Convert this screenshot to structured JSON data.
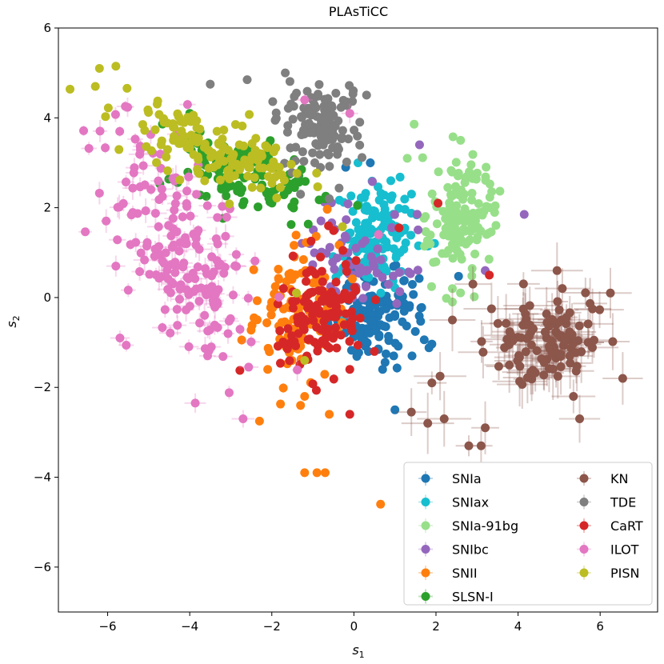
{
  "chart_data": {
    "type": "scatter",
    "title": "PLAsTiCC",
    "xlabel": "s",
    "xlabel_sub": "1",
    "ylabel": "s",
    "ylabel_sub": "2",
    "xlim": [
      -7.2,
      7.4
    ],
    "ylim": [
      -7.0,
      6.0
    ],
    "xticks": [
      -6,
      -4,
      -2,
      0,
      2,
      4,
      6
    ],
    "yticks": [
      -6,
      -4,
      -2,
      0,
      2,
      4,
      6
    ],
    "grid": false,
    "legend_placement": "lower-right",
    "series": [
      {
        "name": "SNIa",
        "color": "#1f77b4",
        "center": [
          0.6,
          -0.4
        ],
        "spread": [
          0.55,
          0.55
        ],
        "corr": 0.1,
        "count": 130,
        "err": 0.08,
        "extra": [
          [
            0.4,
            3.0
          ],
          [
            -0.2,
            2.9
          ],
          [
            1.0,
            -2.5
          ],
          [
            0.7,
            -1.6
          ]
        ]
      },
      {
        "name": "SNIax",
        "color": "#17becf",
        "center": [
          0.6,
          1.4
        ],
        "spread": [
          0.45,
          0.6
        ],
        "corr": 0.2,
        "count": 140,
        "err": 0.07,
        "extra": [
          [
            0.9,
            2.6
          ],
          [
            0.1,
            3.0
          ]
        ]
      },
      {
        "name": "SNIa-91bg",
        "color": "#98df8a",
        "center": [
          2.65,
          1.8
        ],
        "spread": [
          0.4,
          0.65
        ],
        "corr": 0.0,
        "count": 150,
        "err": 0.07,
        "extra": [
          [
            2.6,
            3.5
          ],
          [
            2.4,
            0.2
          ],
          [
            2.4,
            -0.1
          ],
          [
            1.3,
            3.1
          ]
        ]
      },
      {
        "name": "SNIbc",
        "color": "#9467bd",
        "center": [
          0.0,
          0.9
        ],
        "spread": [
          0.7,
          0.7
        ],
        "corr": 0.0,
        "count": 70,
        "err": 0.08,
        "extra": [
          [
            4.15,
            1.85
          ],
          [
            1.6,
            3.4
          ],
          [
            3.2,
            0.6
          ]
        ]
      },
      {
        "name": "SNII",
        "color": "#ff7f0e",
        "center": [
          -1.3,
          -0.3
        ],
        "spread": [
          0.5,
          0.75
        ],
        "corr": 0.1,
        "count": 120,
        "err": 0.08,
        "extra": [
          [
            -1.2,
            -3.9
          ],
          [
            -0.9,
            -3.9
          ],
          [
            -0.7,
            -3.9
          ],
          [
            0.65,
            -4.6
          ],
          [
            -1.3,
            -2.4
          ],
          [
            -0.6,
            -2.6
          ],
          [
            -2.3,
            -2.75
          ],
          [
            -2.1,
            -1.6
          ],
          [
            -1.2,
            -2.2
          ]
        ]
      },
      {
        "name": "SLSN-I",
        "color": "#2ca02c",
        "center": [
          -2.6,
          2.7
        ],
        "spread": [
          0.8,
          0.45
        ],
        "corr": -0.5,
        "count": 120,
        "err": 0.07,
        "extra": [
          [
            -4.0,
            4.1
          ],
          [
            -2.1,
            3.4
          ],
          [
            -1.7,
            2.3
          ]
        ]
      },
      {
        "name": "KN",
        "color": "#8c564b",
        "center": [
          4.8,
          -0.9
        ],
        "spread": [
          0.7,
          0.5
        ],
        "corr": 0.0,
        "count": 110,
        "err": 0.5,
        "extra": [
          [
            2.8,
            -3.3
          ],
          [
            3.1,
            -3.3
          ],
          [
            3.2,
            -2.9
          ],
          [
            2.2,
            -2.7
          ],
          [
            1.8,
            -2.8
          ],
          [
            1.4,
            -2.55
          ],
          [
            2.1,
            -1.75
          ],
          [
            1.9,
            -1.9
          ],
          [
            5.5,
            -2.7
          ],
          [
            6.55,
            -1.8
          ],
          [
            5.35,
            -2.2
          ],
          [
            6.25,
            0.1
          ],
          [
            4.95,
            0.6
          ],
          [
            5.85,
            -0.95
          ],
          [
            2.9,
            0.3
          ],
          [
            2.4,
            -0.5
          ]
        ]
      },
      {
        "name": "TDE",
        "color": "#7f7f7f",
        "center": [
          -0.8,
          3.8
        ],
        "spread": [
          0.45,
          0.5
        ],
        "corr": 0.0,
        "count": 130,
        "err": 0.08,
        "extra": [
          [
            -3.5,
            4.75
          ],
          [
            -2.6,
            4.85
          ],
          [
            -0.6,
            2.2
          ],
          [
            -1.3,
            2.3
          ]
        ]
      },
      {
        "name": "CaRT",
        "color": "#d62728",
        "center": [
          -0.8,
          -0.3
        ],
        "spread": [
          0.55,
          0.7
        ],
        "corr": 0.2,
        "count": 140,
        "err": 0.08,
        "extra": [
          [
            -0.1,
            -2.6
          ],
          [
            -0.1,
            -1.6
          ],
          [
            1.1,
            1.55
          ],
          [
            2.05,
            2.1
          ],
          [
            3.3,
            0.5
          ],
          [
            0.5,
            -1.2
          ]
        ]
      },
      {
        "name": "ILOT",
        "color": "#e377c2",
        "center": [
          -4.2,
          1.0
        ],
        "spread": [
          0.9,
          1.25
        ],
        "corr": -0.55,
        "count": 190,
        "err": 0.2,
        "extra": [
          [
            -5.8,
            0.7
          ],
          [
            -5.7,
            -0.9
          ],
          [
            -2.7,
            -2.7
          ],
          [
            -1.2,
            4.4
          ],
          [
            -0.1,
            4.1
          ],
          [
            0.6,
            1.4
          ]
        ]
      },
      {
        "name": "PISN",
        "color": "#bcbd22",
        "center": [
          -3.5,
          3.3
        ],
        "spread": [
          1.1,
          0.55
        ],
        "corr": -0.7,
        "count": 150,
        "err": 0.06,
        "extra": [
          [
            -6.2,
            5.1
          ],
          [
            -5.8,
            5.15
          ],
          [
            -6.3,
            4.7
          ],
          [
            -1.4,
            0.1
          ],
          [
            -1.2,
            -1.4
          ]
        ]
      }
    ]
  }
}
